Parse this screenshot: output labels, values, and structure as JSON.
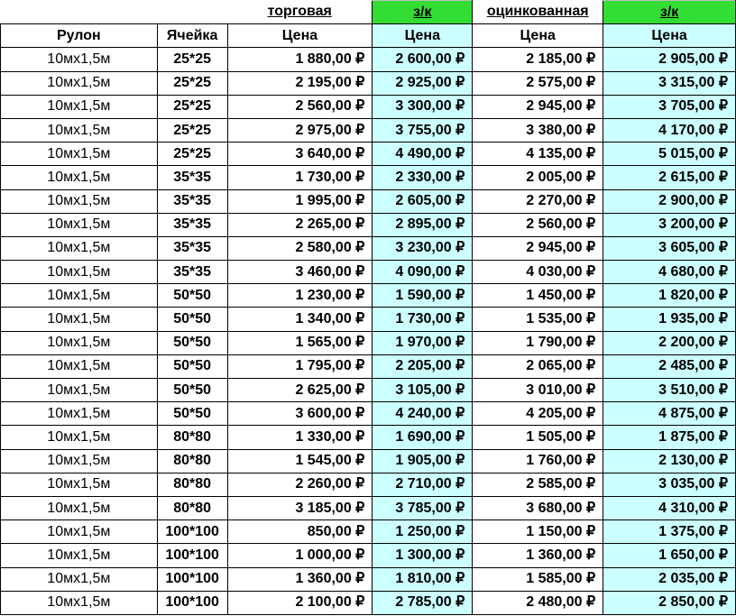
{
  "top_headers": {
    "trade": "торговая",
    "zk1": "з/к",
    "galvanized": "оцинкованная",
    "zk2": "з/к"
  },
  "columns": [
    "Рулон",
    "Ячейка",
    "Цена",
    "Цена",
    "Цена",
    "Цена"
  ],
  "rows": [
    [
      "10мх1,5м",
      "25*25",
      "1 880,00 ₽",
      "2 600,00 ₽",
      "2 185,00 ₽",
      "2 905,00 ₽"
    ],
    [
      "10мх1,5м",
      "25*25",
      "2 195,00 ₽",
      "2 925,00 ₽",
      "2 575,00 ₽",
      "3 315,00 ₽"
    ],
    [
      "10мх1,5м",
      "25*25",
      "2 560,00 ₽",
      "3 300,00 ₽",
      "2 945,00 ₽",
      "3 705,00 ₽"
    ],
    [
      "10мх1,5м",
      "25*25",
      "2 975,00 ₽",
      "3 755,00 ₽",
      "3 380,00 ₽",
      "4 170,00 ₽"
    ],
    [
      "10мх1,5м",
      "25*25",
      "3 640,00 ₽",
      "4 490,00 ₽",
      "4 135,00 ₽",
      "5 015,00 ₽"
    ],
    [
      "10мх1,5м",
      "35*35",
      "1 730,00 ₽",
      "2 330,00 ₽",
      "2 005,00 ₽",
      "2 615,00 ₽"
    ],
    [
      "10мх1,5м",
      "35*35",
      "1 995,00 ₽",
      "2 605,00 ₽",
      "2 270,00 ₽",
      "2 900,00 ₽"
    ],
    [
      "10мх1,5м",
      "35*35",
      "2 265,00 ₽",
      "2 895,00 ₽",
      "2 560,00 ₽",
      "3 200,00 ₽"
    ],
    [
      "10мх1,5м",
      "35*35",
      "2 580,00 ₽",
      "3 230,00 ₽",
      "2 945,00 ₽",
      "3 605,00 ₽"
    ],
    [
      "10мх1,5м",
      "35*35",
      "3 460,00 ₽",
      "4 090,00 ₽",
      "4 030,00 ₽",
      "4 680,00 ₽"
    ],
    [
      "10мх1,5м",
      "50*50",
      "1 230,00 ₽",
      "1 590,00 ₽",
      "1 450,00 ₽",
      "1 820,00 ₽"
    ],
    [
      "10мх1,5м",
      "50*50",
      "1 340,00 ₽",
      "1 730,00 ₽",
      "1 535,00 ₽",
      "1 935,00 ₽"
    ],
    [
      "10мх1,5м",
      "50*50",
      "1 565,00 ₽",
      "1 970,00 ₽",
      "1 790,00 ₽",
      "2 200,00 ₽"
    ],
    [
      "10мх1,5м",
      "50*50",
      "1 795,00 ₽",
      "2 205,00 ₽",
      "2 065,00 ₽",
      "2 485,00 ₽"
    ],
    [
      "10мх1,5м",
      "50*50",
      "2 625,00 ₽",
      "3 105,00 ₽",
      "3 010,00 ₽",
      "3 510,00 ₽"
    ],
    [
      "10мх1,5м",
      "50*50",
      "3 600,00 ₽",
      "4 240,00 ₽",
      "4 205,00 ₽",
      "4 875,00 ₽"
    ],
    [
      "10мх1,5м",
      "80*80",
      "1 330,00 ₽",
      "1 690,00 ₽",
      "1 505,00 ₽",
      "1 875,00 ₽"
    ],
    [
      "10мх1,5м",
      "80*80",
      "1 545,00 ₽",
      "1 905,00 ₽",
      "1 760,00 ₽",
      "2 130,00 ₽"
    ],
    [
      "10мх1,5м",
      "80*80",
      "2 260,00 ₽",
      "2 710,00 ₽",
      "2 585,00 ₽",
      "3 035,00 ₽"
    ],
    [
      "10мх1,5м",
      "80*80",
      "3 185,00 ₽",
      "3 785,00 ₽",
      "3 680,00 ₽",
      "4 310,00 ₽"
    ],
    [
      "10мх1,5м",
      "100*100",
      "850,00 ₽",
      "1 250,00 ₽",
      "1 150,00 ₽",
      "1 375,00 ₽"
    ],
    [
      "10мх1,5м",
      "100*100",
      "1 000,00 ₽",
      "1 300,00 ₽",
      "1 360,00 ₽",
      "1 650,00 ₽"
    ],
    [
      "10мх1,5м",
      "100*100",
      "1 360,00 ₽",
      "1 810,00 ₽",
      "1 585,00 ₽",
      "2 035,00 ₽"
    ],
    [
      "10мх1,5м",
      "100*100",
      "2 100,00 ₽",
      "2 785,00 ₽",
      "2 480,00 ₽",
      "2 850,00 ₽"
    ]
  ],
  "colors": {
    "green_header": "#33dd33",
    "cyan_fill": "#ccffff",
    "grid_line": "#000000"
  }
}
